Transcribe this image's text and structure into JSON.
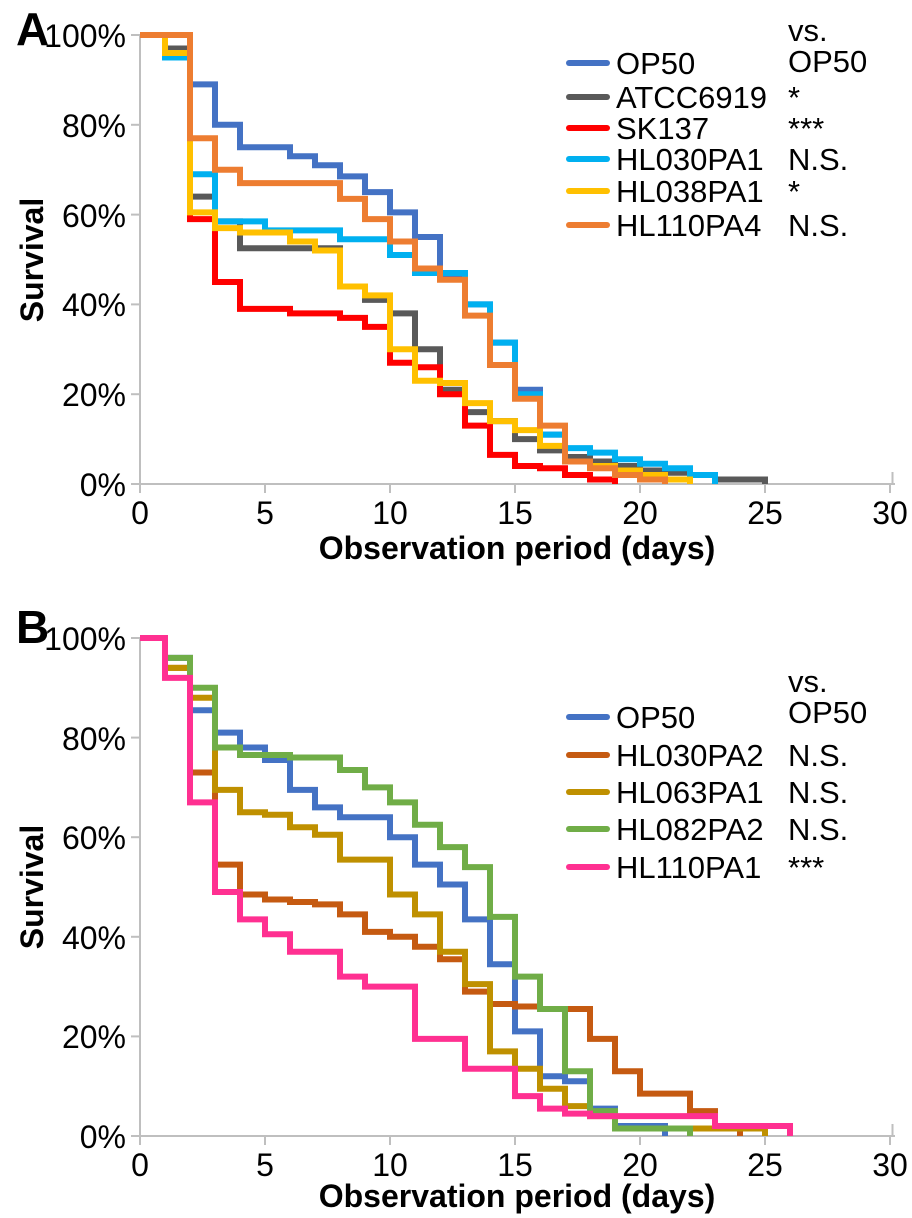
{
  "figure": {
    "description": "Kaplan-Meier style survival curves of C. elegans on different bacterial strains, panels A and B",
    "text_color": "#000000",
    "axis_color": "#BFBFBF"
  },
  "chart_data": [
    {
      "type": "line",
      "panel": "A",
      "step": "post",
      "xlabel": "Observation period (days)",
      "ylabel": "Survival",
      "comparison_header": "vs. OP50",
      "xlim": [
        0,
        30
      ],
      "ylim": [
        0,
        100
      ],
      "x_ticks": [
        0,
        5,
        10,
        15,
        20,
        25,
        30
      ],
      "y_tick_labels": [
        "100%",
        "80%",
        "60%",
        "40%",
        "20%",
        "0%"
      ],
      "grid": false,
      "legend_position": "upper right",
      "series": [
        {
          "name": "OP50",
          "color": "#4472C4",
          "significance_vs_OP50": "",
          "points": [
            [
              0,
              100
            ],
            [
              2,
              89
            ],
            [
              3,
              80
            ],
            [
              4,
              75
            ],
            [
              6,
              73
            ],
            [
              7,
              71
            ],
            [
              8,
              68.5
            ],
            [
              9,
              65
            ],
            [
              10,
              60.5
            ],
            [
              11,
              55
            ],
            [
              12,
              46
            ],
            [
              13,
              40
            ],
            [
              14,
              31.5
            ],
            [
              15,
              21
            ],
            [
              16,
              11
            ],
            [
              17,
              6
            ],
            [
              18,
              4
            ],
            [
              19,
              3
            ],
            [
              20,
              2
            ],
            [
              21,
              1
            ],
            [
              22,
              0
            ]
          ]
        },
        {
          "name": "ATCC6919",
          "color": "#595959",
          "significance_vs_OP50": "*",
          "points": [
            [
              0,
              100
            ],
            [
              1,
              97
            ],
            [
              2,
              64
            ],
            [
              3,
              58.5
            ],
            [
              4,
              52.5
            ],
            [
              8,
              44
            ],
            [
              9,
              41
            ],
            [
              10,
              38
            ],
            [
              11,
              30
            ],
            [
              12,
              21
            ],
            [
              13,
              16
            ],
            [
              14,
              14
            ],
            [
              15,
              10
            ],
            [
              16,
              7.5
            ],
            [
              17,
              6
            ],
            [
              18,
              5
            ],
            [
              19,
              4
            ],
            [
              20,
              3
            ],
            [
              21,
              2.5
            ],
            [
              22,
              2
            ],
            [
              23,
              1
            ],
            [
              25,
              0
            ]
          ]
        },
        {
          "name": "SK137",
          "color": "#FF0000",
          "significance_vs_OP50": "***",
          "points": [
            [
              0,
              100
            ],
            [
              1,
              96
            ],
            [
              2,
              59
            ],
            [
              3,
              45
            ],
            [
              4,
              39
            ],
            [
              6,
              38
            ],
            [
              8,
              37
            ],
            [
              9,
              35
            ],
            [
              10,
              27
            ],
            [
              11,
              26
            ],
            [
              12,
              20
            ],
            [
              13,
              13
            ],
            [
              14,
              6.5
            ],
            [
              15,
              4
            ],
            [
              16,
              3.5
            ],
            [
              17,
              2
            ],
            [
              18,
              1
            ],
            [
              19,
              0
            ]
          ]
        },
        {
          "name": "HL030PA1",
          "color": "#00B0F0",
          "significance_vs_OP50": "N.S.",
          "points": [
            [
              0,
              100
            ],
            [
              1,
              95
            ],
            [
              2,
              69
            ],
            [
              3,
              58.5
            ],
            [
              5,
              56.5
            ],
            [
              8,
              54.5
            ],
            [
              10,
              51
            ],
            [
              11,
              47
            ],
            [
              13,
              40
            ],
            [
              14,
              31.5
            ],
            [
              15,
              20
            ],
            [
              16,
              11
            ],
            [
              17,
              8
            ],
            [
              18,
              7
            ],
            [
              19,
              5.5
            ],
            [
              20,
              4.5
            ],
            [
              21,
              3.5
            ],
            [
              22,
              2
            ],
            [
              23,
              0
            ]
          ]
        },
        {
          "name": "HL038PA1",
          "color": "#FFC000",
          "significance_vs_OP50": "*",
          "points": [
            [
              0,
              100
            ],
            [
              1,
              96
            ],
            [
              2,
              60.5
            ],
            [
              3,
              57
            ],
            [
              4,
              56
            ],
            [
              6,
              54
            ],
            [
              7,
              52
            ],
            [
              8,
              44
            ],
            [
              9,
              42
            ],
            [
              10,
              30
            ],
            [
              11,
              23
            ],
            [
              12,
              22.5
            ],
            [
              13,
              18
            ],
            [
              14,
              14
            ],
            [
              15,
              12
            ],
            [
              16,
              8.5
            ],
            [
              17,
              5
            ],
            [
              18,
              4
            ],
            [
              19,
              3
            ],
            [
              20,
              2
            ],
            [
              21,
              1
            ],
            [
              22,
              0
            ]
          ]
        },
        {
          "name": "HL110PA4",
          "color": "#ED7D31",
          "significance_vs_OP50": "N.S.",
          "points": [
            [
              0,
              100
            ],
            [
              2,
              77
            ],
            [
              3,
              70
            ],
            [
              4,
              67
            ],
            [
              8,
              63.5
            ],
            [
              9,
              59
            ],
            [
              10,
              54
            ],
            [
              11,
              48
            ],
            [
              12,
              45.5
            ],
            [
              13,
              37.5
            ],
            [
              14,
              26.5
            ],
            [
              15,
              19
            ],
            [
              16,
              13
            ],
            [
              17,
              5
            ],
            [
              18,
              3.5
            ],
            [
              19,
              2
            ],
            [
              20,
              1
            ],
            [
              21,
              0
            ]
          ]
        }
      ]
    },
    {
      "type": "line",
      "panel": "B",
      "step": "post",
      "xlabel": "Observation period (days)",
      "ylabel": "Survival",
      "comparison_header": "vs. OP50",
      "xlim": [
        0,
        30
      ],
      "ylim": [
        0,
        100
      ],
      "x_ticks": [
        0,
        5,
        10,
        15,
        20,
        25,
        30
      ],
      "y_tick_labels": [
        "100%",
        "80%",
        "60%",
        "40%",
        "20%",
        "0%"
      ],
      "grid": false,
      "legend_position": "upper right",
      "series": [
        {
          "name": "OP50",
          "color": "#4472C4",
          "significance_vs_OP50": "",
          "points": [
            [
              0,
              100
            ],
            [
              1,
              96
            ],
            [
              2,
              85.5
            ],
            [
              3,
              81
            ],
            [
              4,
              78
            ],
            [
              5,
              75.5
            ],
            [
              6,
              69.5
            ],
            [
              7,
              66
            ],
            [
              8,
              64
            ],
            [
              10,
              60
            ],
            [
              11,
              54.5
            ],
            [
              12,
              50.5
            ],
            [
              13,
              43.5
            ],
            [
              14,
              34.5
            ],
            [
              15,
              21
            ],
            [
              16,
              12
            ],
            [
              17,
              11
            ],
            [
              18,
              5.5
            ],
            [
              19,
              2
            ],
            [
              21,
              0
            ]
          ]
        },
        {
          "name": "HL030PA2",
          "color": "#C55A11",
          "significance_vs_OP50": "N.S.",
          "points": [
            [
              0,
              100
            ],
            [
              1,
              94
            ],
            [
              2,
              73
            ],
            [
              3,
              54.5
            ],
            [
              4,
              48.5
            ],
            [
              5,
              47.5
            ],
            [
              6,
              47
            ],
            [
              7,
              46.5
            ],
            [
              8,
              44.5
            ],
            [
              9,
              41
            ],
            [
              10,
              40
            ],
            [
              11,
              38
            ],
            [
              12,
              35.5
            ],
            [
              13,
              29
            ],
            [
              14,
              26.5
            ],
            [
              15,
              26
            ],
            [
              16,
              25.5
            ],
            [
              18,
              19.5
            ],
            [
              19,
              13
            ],
            [
              20,
              8.5
            ],
            [
              22,
              5
            ],
            [
              23,
              1.5
            ],
            [
              24,
              0
            ]
          ]
        },
        {
          "name": "HL063PA1",
          "color": "#BF9000",
          "significance_vs_OP50": "N.S.",
          "points": [
            [
              0,
              100
            ],
            [
              1,
              94
            ],
            [
              2,
              88
            ],
            [
              3,
              69.5
            ],
            [
              4,
              65
            ],
            [
              5,
              64.5
            ],
            [
              6,
              62
            ],
            [
              7,
              60.5
            ],
            [
              8,
              55.5
            ],
            [
              10,
              48.5
            ],
            [
              11,
              44.5
            ],
            [
              12,
              37
            ],
            [
              13,
              30.5
            ],
            [
              14,
              17
            ],
            [
              15,
              13.5
            ],
            [
              16,
              9.5
            ],
            [
              17,
              6
            ],
            [
              18,
              4
            ],
            [
              19,
              1.5
            ],
            [
              25,
              0
            ]
          ]
        },
        {
          "name": "HL082PA2",
          "color": "#70AD47",
          "significance_vs_OP50": "N.S.",
          "points": [
            [
              0,
              100
            ],
            [
              1,
              96
            ],
            [
              2,
              90
            ],
            [
              3,
              78
            ],
            [
              4,
              76.5
            ],
            [
              6,
              76
            ],
            [
              8,
              73.5
            ],
            [
              9,
              70
            ],
            [
              10,
              67
            ],
            [
              11,
              62.5
            ],
            [
              12,
              58
            ],
            [
              13,
              54
            ],
            [
              14,
              44
            ],
            [
              15,
              32
            ],
            [
              16,
              25.5
            ],
            [
              17,
              13
            ],
            [
              18,
              5
            ],
            [
              19,
              1.5
            ],
            [
              22,
              0
            ]
          ]
        },
        {
          "name": "HL110PA1",
          "color": "#FF3091",
          "significance_vs_OP50": "***",
          "points": [
            [
              0,
              100
            ],
            [
              1,
              92
            ],
            [
              2,
              67
            ],
            [
              3,
              49
            ],
            [
              4,
              43.5
            ],
            [
              5,
              40.5
            ],
            [
              6,
              37
            ],
            [
              8,
              32
            ],
            [
              9,
              30
            ],
            [
              11,
              19.5
            ],
            [
              13,
              13.5
            ],
            [
              15,
              8
            ],
            [
              16,
              5.5
            ],
            [
              17,
              4.5
            ],
            [
              18,
              4
            ],
            [
              23,
              2
            ],
            [
              26,
              0
            ]
          ]
        }
      ]
    }
  ]
}
